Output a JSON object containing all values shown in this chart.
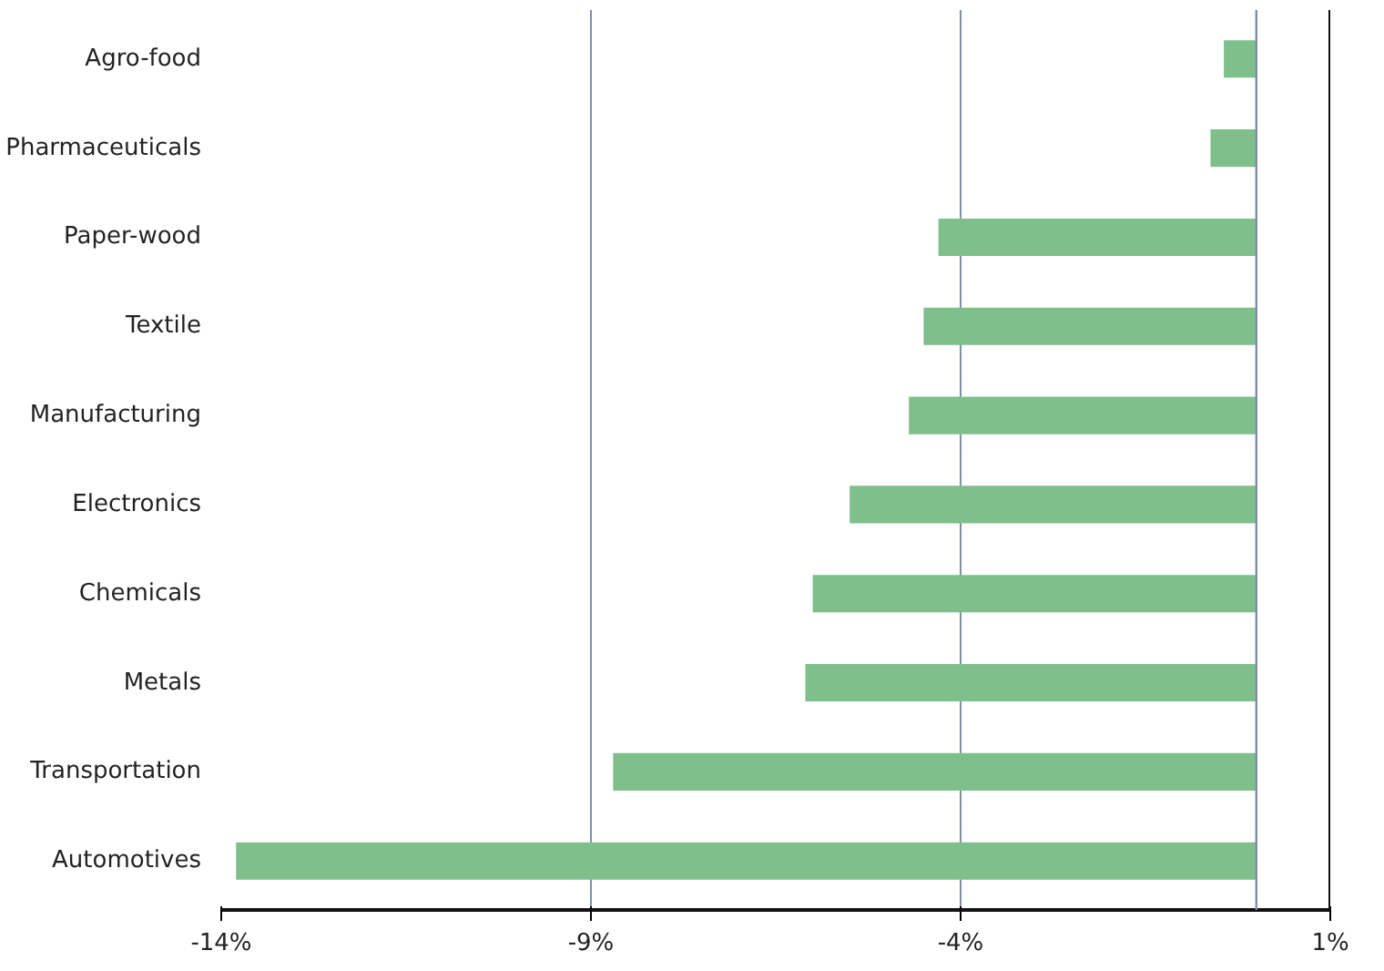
{
  "chart_data": {
    "type": "bar",
    "orientation": "horizontal",
    "categories": [
      "Agro-food",
      "Pharmaceuticals",
      "Paper-wood",
      "Textile",
      "Manufacturing",
      "Electronics",
      "Chemicals",
      "Metals",
      "Transportation",
      "Automotives"
    ],
    "values": [
      -0.44,
      -0.62,
      -4.3,
      -4.5,
      -4.7,
      -5.5,
      -6.0,
      -6.1,
      -8.7,
      -13.8
    ],
    "color": "#7fbf8c",
    "xlim": [
      -14,
      1
    ],
    "xticks": [
      {
        "value": -14,
        "label": "-14%"
      },
      {
        "value": -9,
        "label": "-9%"
      },
      {
        "value": -4,
        "label": "-4%"
      },
      {
        "value": 1,
        "label": "1%"
      }
    ],
    "grid": "x",
    "ref_lines": [
      {
        "axis": "x",
        "value": 0,
        "color": "#8090a8"
      }
    ]
  }
}
